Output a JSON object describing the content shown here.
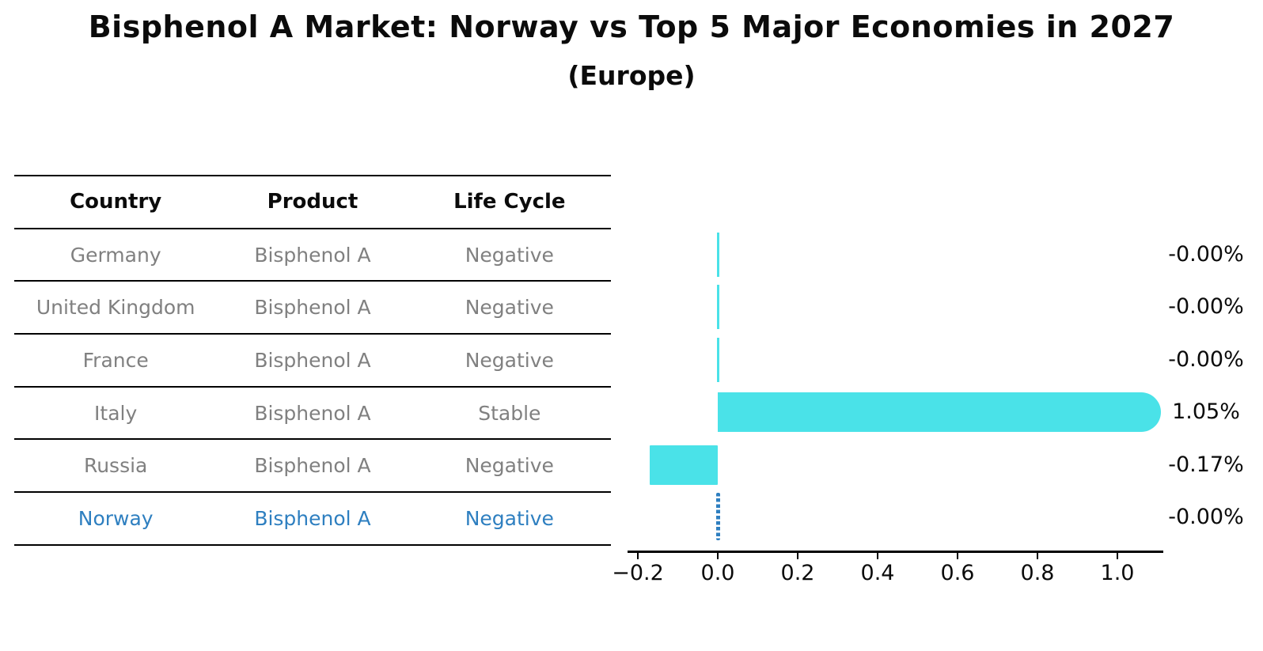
{
  "header": {
    "title": "Bisphenol A Market: Norway vs Top 5 Major Economies in 2027",
    "subtitle": "(Europe)"
  },
  "table": {
    "columns": [
      "Country",
      "Product",
      "Life Cycle"
    ],
    "rows": [
      {
        "country": "Germany",
        "product": "Bisphenol A",
        "life_cycle": "Negative",
        "highlight": false
      },
      {
        "country": "United Kingdom",
        "product": "Bisphenol A",
        "life_cycle": "Negative",
        "highlight": false
      },
      {
        "country": "France",
        "product": "Bisphenol A",
        "life_cycle": "Negative",
        "highlight": false
      },
      {
        "country": "Italy",
        "product": "Bisphenol A",
        "life_cycle": "Stable",
        "highlight": false
      },
      {
        "country": "Russia",
        "product": "Bisphenol A",
        "life_cycle": "Negative",
        "highlight": false
      },
      {
        "country": "Norway",
        "product": "Bisphenol A",
        "life_cycle": "Negative",
        "highlight": true
      }
    ]
  },
  "chart_data": {
    "type": "bar",
    "orientation": "horizontal",
    "title": "Bisphenol A Market: Norway vs Top 5 Major Economies in 2027",
    "subtitle": "(Europe)",
    "categories": [
      "Germany",
      "United Kingdom",
      "France",
      "Italy",
      "Russia",
      "Norway"
    ],
    "values": [
      -0.0,
      -0.0,
      -0.0,
      1.05,
      -0.17,
      -0.0
    ],
    "value_labels": [
      "-0.00%",
      "-0.00%",
      "-0.00%",
      "1.05%",
      "-0.17%",
      "-0.00%"
    ],
    "unit": "%",
    "x_ticks": [
      "−0.2",
      "0.0",
      "0.2",
      "0.4",
      "0.6",
      "0.8",
      "1.0"
    ],
    "x_tick_values": [
      -0.2,
      0.0,
      0.2,
      0.4,
      0.6,
      0.8,
      1.0
    ],
    "xlim": [
      -0.23,
      1.115
    ],
    "grid": false,
    "legend": "none",
    "highlight_country": "Norway",
    "highlight_marker": "dotted-vertical-line",
    "bar_color": "#4AE2E8",
    "highlight_color": "#2E7FC0",
    "axis_color": "#000000"
  }
}
